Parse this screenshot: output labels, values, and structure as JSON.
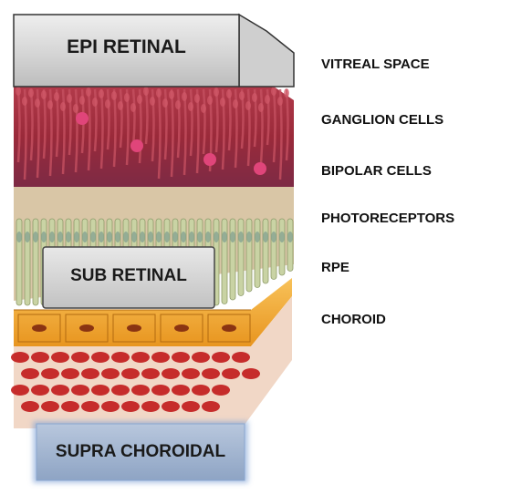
{
  "implants": {
    "epi": "EPI RETINAL",
    "sub": "SUB RETINAL",
    "supra": "SUPRA CHOROIDAL"
  },
  "layers": [
    "VITREAL SPACE",
    "GANGLION CELLS",
    "BIPOLAR CELLS",
    "PHOTORECEPTORS",
    "RPE",
    "CHOROID"
  ],
  "colors": {
    "ganglion": "#9e2a3a",
    "nerve_fiber": "#c45060",
    "photoreceptor_rod": "#c9d3a4",
    "rpe": "#f0a73a",
    "choroid_blood": "#c11a1a",
    "implant_box": "#dcdcdc",
    "supra_box": "#9fb3cf"
  }
}
